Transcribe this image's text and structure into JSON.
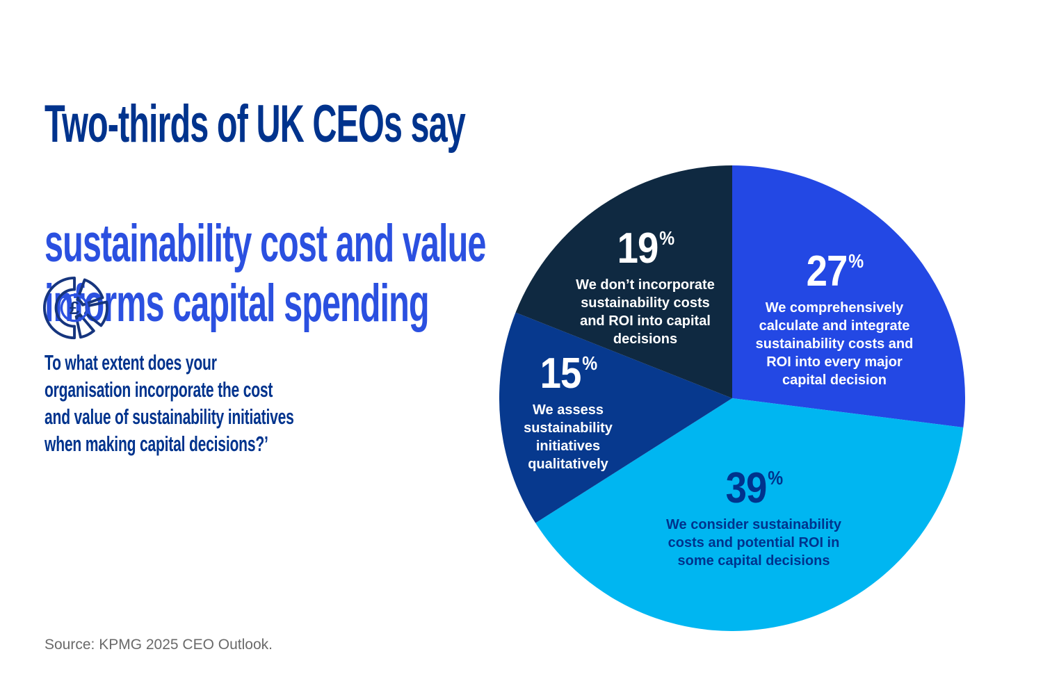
{
  "heading": {
    "line1": "Two-thirds of UK CEOs say",
    "line2": "sustainability cost and value\ninforms capital spending"
  },
  "icon": {
    "name": "pound-pie-icon",
    "symbol": "£"
  },
  "question": {
    "text": "To what extent does your\norganisation incorporate the cost\nand value of sustainability initiatives\nwhen making capital decisions?’"
  },
  "source": {
    "text": "Source: KPMG 2025 CEO Outlook."
  },
  "colors": {
    "headline_dark_blue": "#00338D",
    "headline_bright_blue": "#2B50E0",
    "question_blue": "#00338D",
    "source_gray": "#6A6A6A",
    "icon_outline_navy": "#16357E",
    "icon_ring_blue": "#2B50E0"
  },
  "chart_data": {
    "type": "pie",
    "start_angle": "top",
    "direction": "clockwise",
    "legend": "none",
    "labels_on_slices": true,
    "percent_sign": "%",
    "slices": [
      {
        "value": 27,
        "pct_label": "27",
        "description": "We comprehensively\ncalculate and integrate\nsustainability costs and\nROI into every major\ncapital decision",
        "color": "#2348E4",
        "text_color": "#FFFFFF"
      },
      {
        "value": 39,
        "pct_label": "39",
        "description": "We consider sustainability\ncosts and potential ROI in\nsome capital decisions",
        "color": "#00B6F1",
        "text_color": "#00338D"
      },
      {
        "value": 15,
        "pct_label": "15",
        "description": "We assess\nsustainability\ninitiatives\nqualitatively",
        "color": "#07398E",
        "text_color": "#FFFFFF"
      },
      {
        "value": 19,
        "pct_label": "19",
        "description": "We don’t incorporate\nsustainability costs\nand ROI into capital\ndecisions",
        "color": "#0F2941",
        "text_color": "#FFFFFF"
      }
    ]
  }
}
